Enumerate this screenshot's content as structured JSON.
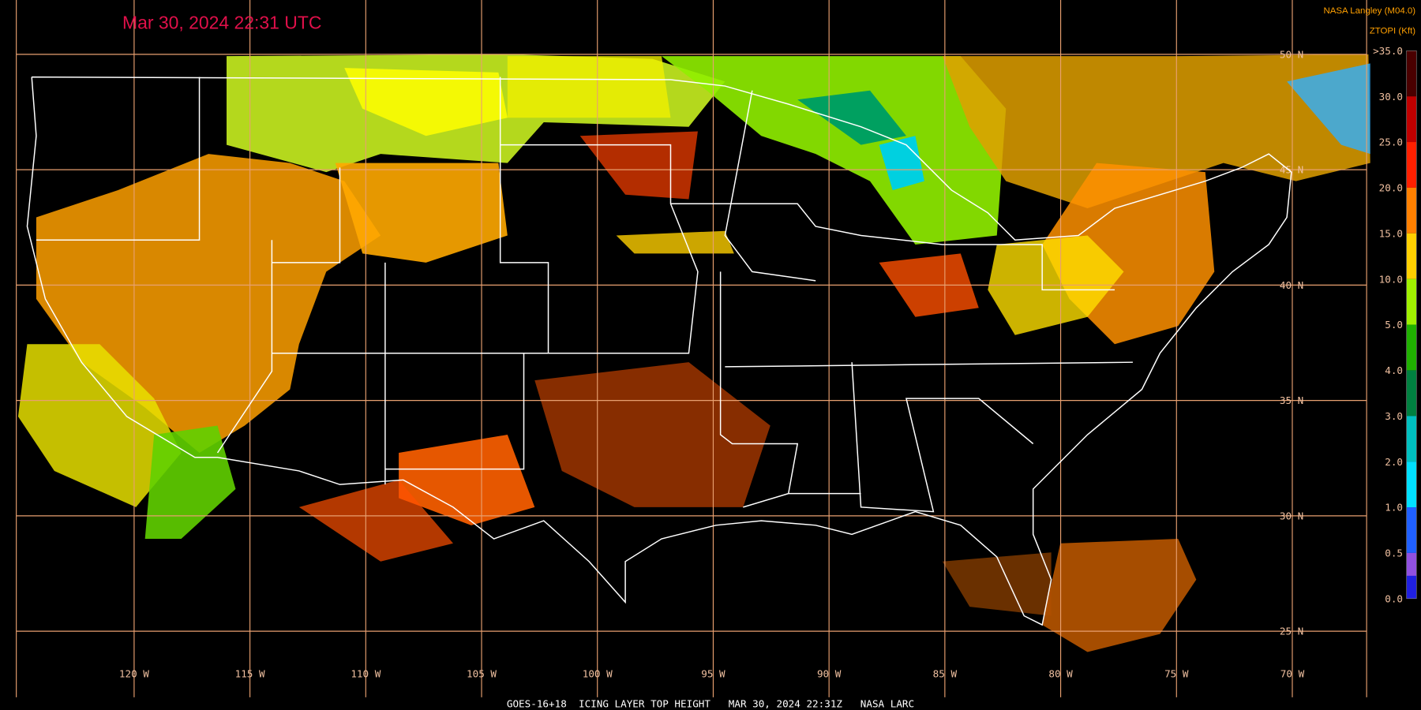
{
  "header": {
    "timestamp": "Mar 30, 2024 22:31 UTC",
    "source": "NASA Langley (M04.0)",
    "product": "ZTOPI (Kft)"
  },
  "map": {
    "latitude_labels": [
      "50 N",
      "45 N",
      "40 N",
      "35 N",
      "30 N",
      "25 N"
    ],
    "longitude_labels": [
      "120 W",
      "115 W",
      "110 W",
      "105 W",
      "100 W",
      "95 W",
      "90 W",
      "85 W",
      "80 W",
      "75 W",
      "70 W"
    ]
  },
  "legend": {
    "items": [
      {
        "label": ">35.0",
        "color": "#4a0000"
      },
      {
        "label": "30.0",
        "color": "#c00000"
      },
      {
        "label": "25.0",
        "color": "#ff2000"
      },
      {
        "label": "20.0",
        "color": "#ff8000"
      },
      {
        "label": "15.0",
        "color": "#ffd000"
      },
      {
        "label": "10.0",
        "color": "#a0f000"
      },
      {
        "label": "5.0",
        "color": "#20b000"
      },
      {
        "label": "4.0",
        "color": "#008040"
      },
      {
        "label": "3.0",
        "color": "#00c0c0"
      },
      {
        "label": "2.0",
        "color": "#00e0ff"
      },
      {
        "label": "1.0",
        "color": "#2060ff"
      },
      {
        "label": "0.5",
        "color": "#2020e0"
      },
      {
        "label": "0.0",
        "color": "#9050e0"
      }
    ]
  },
  "footer": "GOES-16+18  ICING LAYER TOP HEIGHT   MAR 30, 2024 22:31Z   NASA LARC"
}
